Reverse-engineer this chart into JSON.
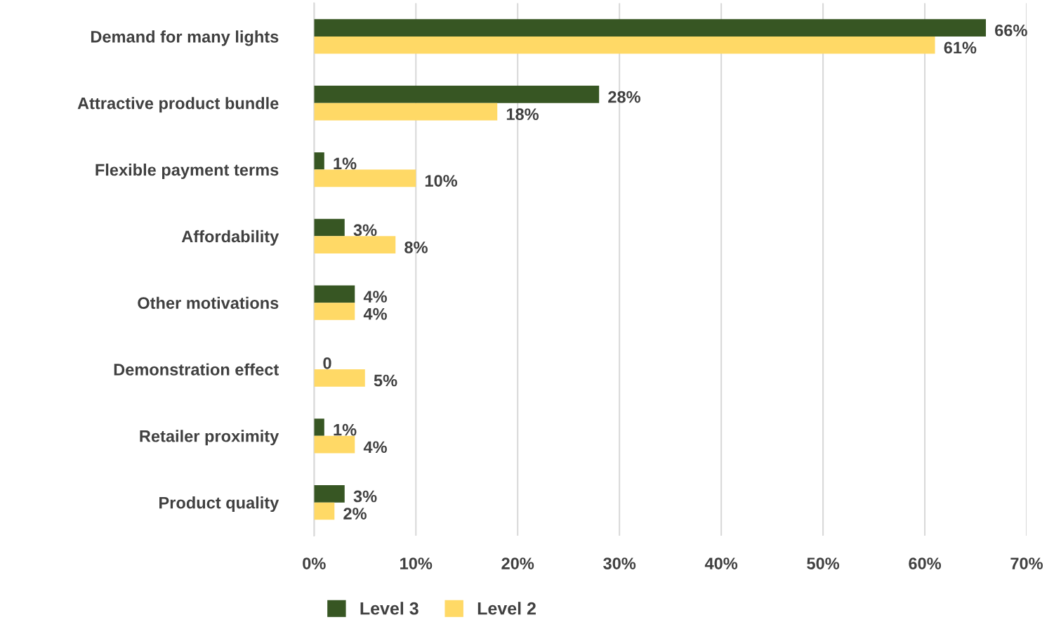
{
  "chart_data": {
    "type": "bar",
    "orientation": "horizontal",
    "categories": [
      "Demand for many lights",
      "Attractive product bundle",
      "Flexible payment terms",
      "Affordability",
      "Other motivations",
      "Demonstration effect",
      "Retailer proximity",
      "Product quality"
    ],
    "series": [
      {
        "name": "Level 3",
        "color": "#375623",
        "values": [
          66,
          28,
          1,
          3,
          4,
          0,
          1,
          3
        ],
        "value_labels": [
          "66%",
          "28%",
          "1%",
          "3%",
          "4%",
          "0",
          "1%",
          "3%"
        ]
      },
      {
        "name": "Level 2",
        "color": "#ffd966",
        "values": [
          61,
          18,
          10,
          8,
          4,
          5,
          4,
          2
        ],
        "value_labels": [
          "61%",
          "18%",
          "10%",
          "8%",
          "4%",
          "5%",
          "4%",
          "2%"
        ]
      }
    ],
    "xlim": [
      0,
      70
    ],
    "xticks": [
      {
        "value": 0,
        "label": "0%"
      },
      {
        "value": 10,
        "label": "10%"
      },
      {
        "value": 20,
        "label": "20%"
      },
      {
        "value": 30,
        "label": "30%"
      },
      {
        "value": 40,
        "label": "40%"
      },
      {
        "value": 50,
        "label": "50%"
      },
      {
        "value": 60,
        "label": "60%"
      },
      {
        "value": 70,
        "label": "70%"
      }
    ],
    "grid": "x",
    "legend": "bottom"
  }
}
